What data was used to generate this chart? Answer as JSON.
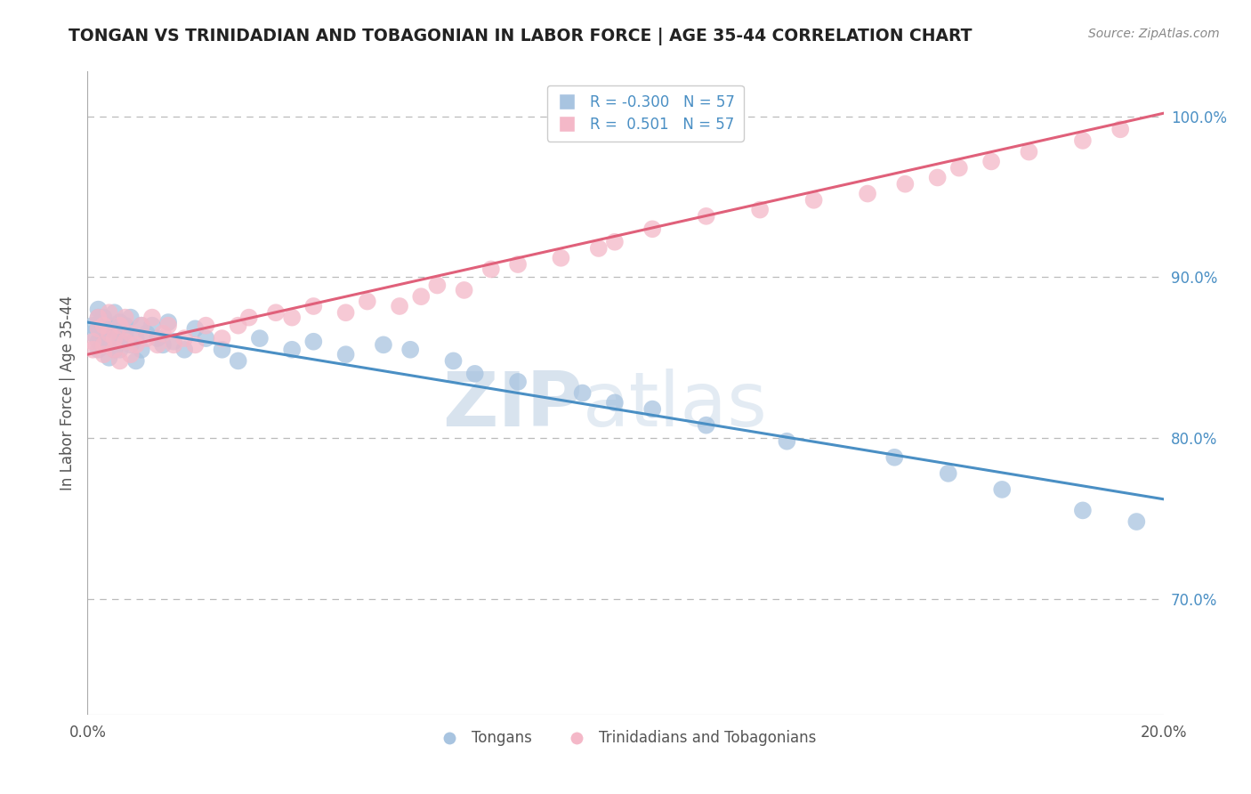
{
  "title": "TONGAN VS TRINIDADIAN AND TOBAGONIAN IN LABOR FORCE | AGE 35-44 CORRELATION CHART",
  "source_text": "Source: ZipAtlas.com",
  "ylabel_label": "In Labor Force | Age 35-44",
  "legend_entries": [
    {
      "label": "R = -0.300   N = 57",
      "color": "#a8c4e0"
    },
    {
      "label": "R =  0.501   N = 57",
      "color": "#f4b8c8"
    }
  ],
  "legend_labels_bottom": [
    "Tongans",
    "Trinidadians and Tobagonians"
  ],
  "blue_scatter_color": "#a8c4e0",
  "pink_scatter_color": "#f4b8c8",
  "blue_line_color": "#4a8fc4",
  "pink_line_color": "#e0607a",
  "watermark_zip": "ZIP",
  "watermark_atlas": "atlas",
  "xmin": 0.0,
  "xmax": 0.2,
  "ymin": 0.628,
  "ymax": 1.028,
  "blue_x": [
    0.001,
    0.001,
    0.002,
    0.002,
    0.002,
    0.002,
    0.003,
    0.003,
    0.003,
    0.003,
    0.004,
    0.004,
    0.004,
    0.005,
    0.005,
    0.005,
    0.006,
    0.006,
    0.006,
    0.007,
    0.007,
    0.008,
    0.008,
    0.009,
    0.009,
    0.01,
    0.01,
    0.011,
    0.012,
    0.013,
    0.014,
    0.015,
    0.016,
    0.018,
    0.02,
    0.022,
    0.025,
    0.028,
    0.032,
    0.038,
    0.042,
    0.048,
    0.055,
    0.06,
    0.068,
    0.072,
    0.08,
    0.092,
    0.098,
    0.105,
    0.115,
    0.13,
    0.15,
    0.16,
    0.17,
    0.185,
    0.195
  ],
  "blue_y": [
    0.87,
    0.865,
    0.875,
    0.86,
    0.88,
    0.855,
    0.87,
    0.865,
    0.858,
    0.875,
    0.85,
    0.862,
    0.87,
    0.855,
    0.868,
    0.878,
    0.86,
    0.872,
    0.855,
    0.865,
    0.87,
    0.858,
    0.875,
    0.848,
    0.862,
    0.87,
    0.855,
    0.865,
    0.87,
    0.862,
    0.858,
    0.872,
    0.86,
    0.855,
    0.868,
    0.862,
    0.855,
    0.848,
    0.862,
    0.855,
    0.86,
    0.852,
    0.858,
    0.855,
    0.848,
    0.84,
    0.835,
    0.828,
    0.822,
    0.818,
    0.808,
    0.798,
    0.788,
    0.778,
    0.768,
    0.755,
    0.748
  ],
  "pink_x": [
    0.001,
    0.001,
    0.002,
    0.002,
    0.003,
    0.003,
    0.003,
    0.004,
    0.004,
    0.005,
    0.005,
    0.006,
    0.006,
    0.007,
    0.007,
    0.008,
    0.008,
    0.009,
    0.01,
    0.011,
    0.012,
    0.013,
    0.014,
    0.015,
    0.016,
    0.018,
    0.02,
    0.022,
    0.025,
    0.028,
    0.03,
    0.035,
    0.038,
    0.042,
    0.048,
    0.052,
    0.058,
    0.062,
    0.065,
    0.07,
    0.075,
    0.08,
    0.088,
    0.095,
    0.098,
    0.105,
    0.115,
    0.125,
    0.135,
    0.145,
    0.152,
    0.158,
    0.162,
    0.168,
    0.175,
    0.185,
    0.192
  ],
  "pink_y": [
    0.86,
    0.855,
    0.868,
    0.875,
    0.87,
    0.858,
    0.852,
    0.865,
    0.878,
    0.855,
    0.862,
    0.848,
    0.87,
    0.86,
    0.875,
    0.852,
    0.865,
    0.858,
    0.87,
    0.862,
    0.875,
    0.858,
    0.865,
    0.87,
    0.858,
    0.862,
    0.858,
    0.87,
    0.862,
    0.87,
    0.875,
    0.878,
    0.875,
    0.882,
    0.878,
    0.885,
    0.882,
    0.888,
    0.895,
    0.892,
    0.905,
    0.908,
    0.912,
    0.918,
    0.922,
    0.93,
    0.938,
    0.942,
    0.948,
    0.952,
    0.958,
    0.962,
    0.968,
    0.972,
    0.978,
    0.985,
    0.992
  ],
  "blue_line_x0": 0.0,
  "blue_line_y0": 0.872,
  "blue_line_x1": 0.2,
  "blue_line_y1": 0.762,
  "pink_line_x0": 0.0,
  "pink_line_y0": 0.852,
  "pink_line_x1": 0.2,
  "pink_line_y1": 1.002
}
